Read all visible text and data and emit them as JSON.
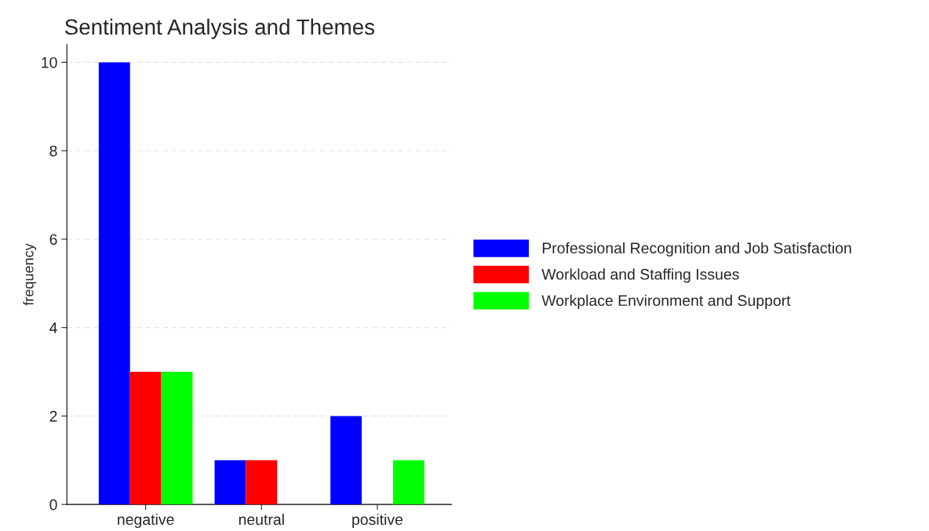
{
  "chart_data": {
    "type": "bar",
    "title": "Sentiment Analysis and Themes",
    "ylabel": "frequency",
    "categories": [
      "negative",
      "neutral",
      "positive"
    ],
    "series": [
      {
        "name": "Professional Recognition and Job Satisfaction",
        "color": "#0000ff",
        "values": [
          10,
          1,
          2
        ]
      },
      {
        "name": "Workload and Staffing Issues",
        "color": "#ff0000",
        "values": [
          3,
          1,
          null
        ]
      },
      {
        "name": "Workplace Environment and Support",
        "color": "#00ff00",
        "values": [
          3,
          null,
          1
        ]
      }
    ],
    "ylim": [
      0,
      10.4
    ],
    "yticks": [
      0,
      2,
      4,
      6,
      8,
      10
    ],
    "grid": "y",
    "legend": "right"
  }
}
